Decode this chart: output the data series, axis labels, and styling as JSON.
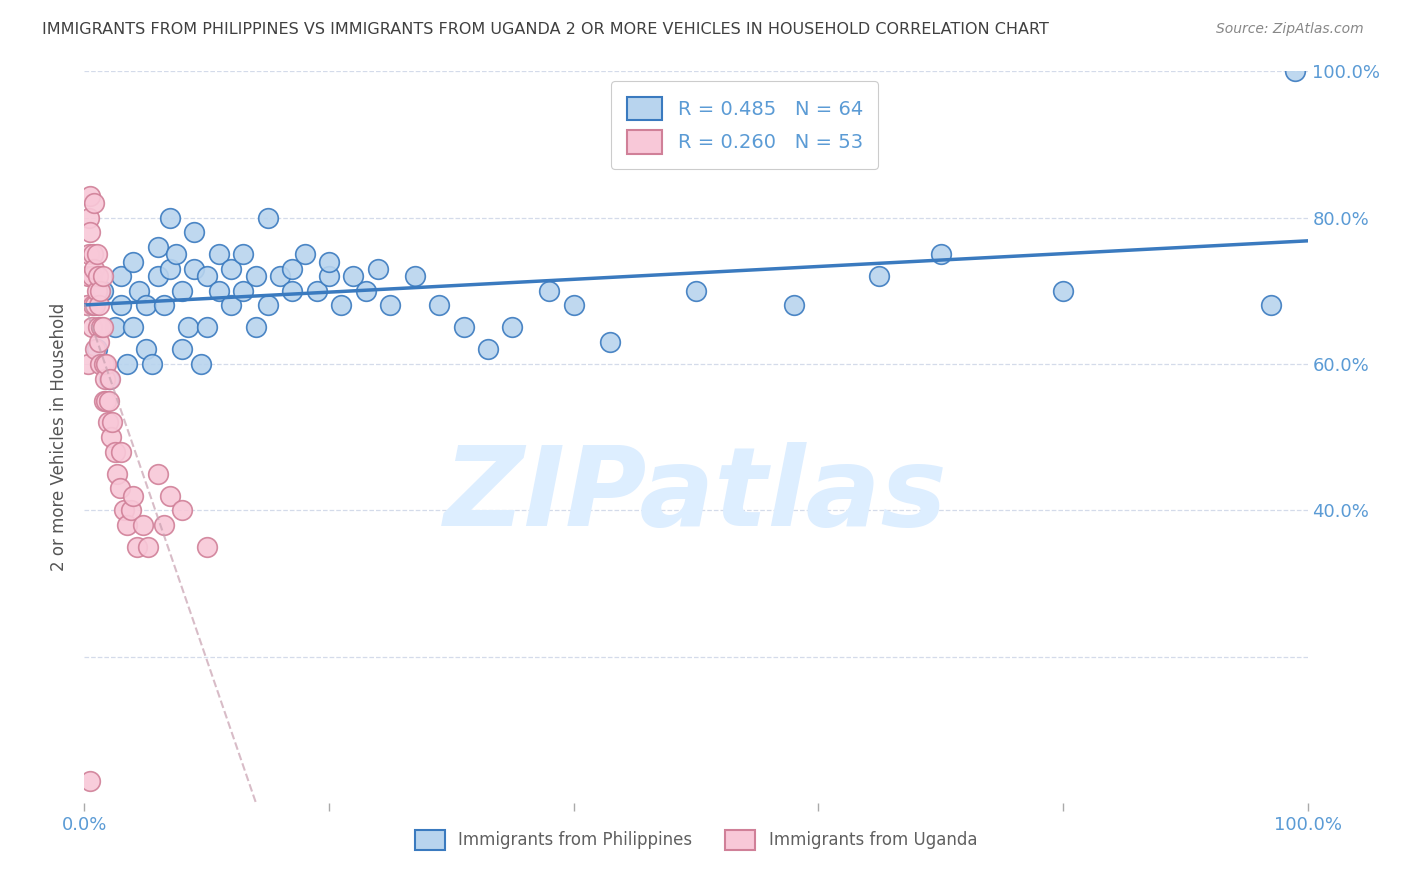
{
  "title": "IMMIGRANTS FROM PHILIPPINES VS IMMIGRANTS FROM UGANDA 2 OR MORE VEHICLES IN HOUSEHOLD CORRELATION CHART",
  "source": "Source: ZipAtlas.com",
  "ylabel": "2 or more Vehicles in Household",
  "xlim": [
    0,
    1
  ],
  "ylim": [
    0,
    1
  ],
  "R_philippines": 0.485,
  "R_uganda": 0.26,
  "N_philippines": 64,
  "N_uganda": 53,
  "bg_color": "#ffffff",
  "grid_color": "#d0d8e8",
  "title_color": "#404040",
  "axis_color": "#5b9bd5",
  "scatter1_color": "#b8d4ee",
  "scatter2_color": "#f8c8d8",
  "line1_color": "#3a7abf",
  "line2_color": "#d08098",
  "line2_dash_color": "#c8a0b0",
  "watermark_color": "#ddeeff",
  "philippines_x": [
    0.01,
    0.015,
    0.02,
    0.025,
    0.03,
    0.03,
    0.035,
    0.04,
    0.04,
    0.045,
    0.05,
    0.05,
    0.055,
    0.06,
    0.06,
    0.065,
    0.07,
    0.07,
    0.075,
    0.08,
    0.08,
    0.085,
    0.09,
    0.09,
    0.095,
    0.1,
    0.1,
    0.11,
    0.11,
    0.12,
    0.12,
    0.13,
    0.13,
    0.14,
    0.14,
    0.15,
    0.15,
    0.16,
    0.17,
    0.17,
    0.18,
    0.19,
    0.2,
    0.2,
    0.21,
    0.22,
    0.23,
    0.24,
    0.25,
    0.27,
    0.29,
    0.31,
    0.33,
    0.35,
    0.38,
    0.4,
    0.43,
    0.5,
    0.58,
    0.65,
    0.7,
    0.8,
    0.97,
    0.99
  ],
  "philippines_y": [
    0.62,
    0.7,
    0.58,
    0.65,
    0.68,
    0.72,
    0.6,
    0.65,
    0.74,
    0.7,
    0.62,
    0.68,
    0.6,
    0.72,
    0.76,
    0.68,
    0.73,
    0.8,
    0.75,
    0.62,
    0.7,
    0.65,
    0.73,
    0.78,
    0.6,
    0.65,
    0.72,
    0.75,
    0.7,
    0.68,
    0.73,
    0.7,
    0.75,
    0.65,
    0.72,
    0.68,
    0.8,
    0.72,
    0.7,
    0.73,
    0.75,
    0.7,
    0.72,
    0.74,
    0.68,
    0.72,
    0.7,
    0.73,
    0.68,
    0.72,
    0.68,
    0.65,
    0.62,
    0.65,
    0.7,
    0.68,
    0.63,
    0.7,
    0.68,
    0.72,
    0.75,
    0.7,
    0.68,
    1.0
  ],
  "uganda_x": [
    0.002,
    0.003,
    0.003,
    0.004,
    0.004,
    0.005,
    0.005,
    0.006,
    0.006,
    0.007,
    0.007,
    0.008,
    0.008,
    0.009,
    0.009,
    0.01,
    0.01,
    0.011,
    0.011,
    0.012,
    0.012,
    0.013,
    0.013,
    0.014,
    0.015,
    0.015,
    0.016,
    0.016,
    0.017,
    0.018,
    0.018,
    0.019,
    0.02,
    0.021,
    0.022,
    0.023,
    0.025,
    0.027,
    0.029,
    0.03,
    0.032,
    0.035,
    0.038,
    0.04,
    0.043,
    0.048,
    0.052,
    0.06,
    0.065,
    0.07,
    0.08,
    0.1,
    0.005
  ],
  "uganda_y": [
    0.68,
    0.72,
    0.6,
    0.8,
    0.75,
    0.83,
    0.78,
    0.72,
    0.65,
    0.75,
    0.68,
    0.82,
    0.73,
    0.68,
    0.62,
    0.75,
    0.7,
    0.72,
    0.65,
    0.63,
    0.68,
    0.7,
    0.6,
    0.65,
    0.72,
    0.65,
    0.6,
    0.55,
    0.58,
    0.6,
    0.55,
    0.52,
    0.55,
    0.58,
    0.5,
    0.52,
    0.48,
    0.45,
    0.43,
    0.48,
    0.4,
    0.38,
    0.4,
    0.42,
    0.35,
    0.38,
    0.35,
    0.45,
    0.38,
    0.42,
    0.4,
    0.35,
    0.03
  ]
}
